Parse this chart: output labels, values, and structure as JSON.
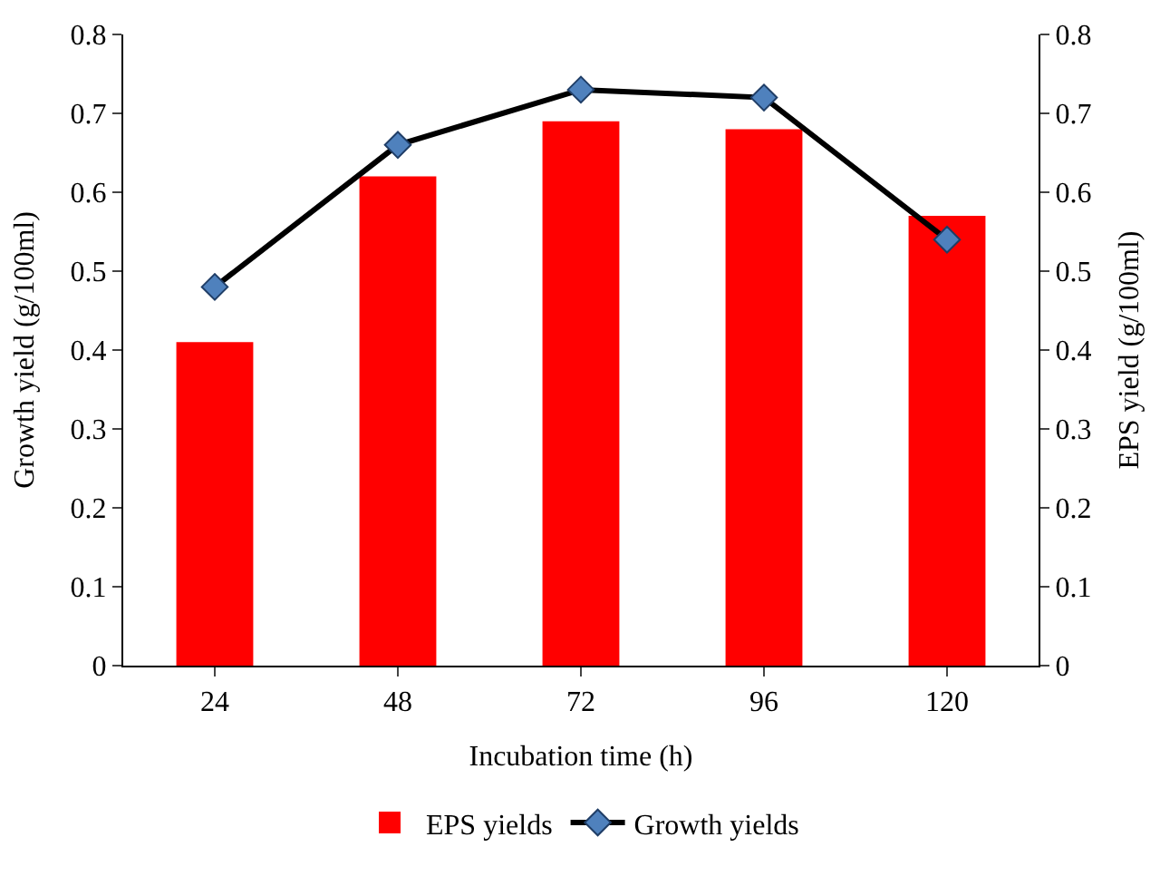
{
  "chart_data": {
    "type": "bar",
    "xlabel": "Incubation time (h)",
    "ylabel": "Growth yield (g/100ml)",
    "y2label": "EPS yield (g/100ml)",
    "categories": [
      "24",
      "48",
      "72",
      "96",
      "120"
    ],
    "series": [
      {
        "name": "EPS yields",
        "axis": "y2",
        "color": "#ff0000",
        "values": [
          0.41,
          0.62,
          0.69,
          0.68,
          0.57
        ]
      },
      {
        "name": "Growth yields",
        "type": "line",
        "color": "#000000",
        "values": [
          0.48,
          0.66,
          0.73,
          0.72,
          0.54
        ]
      }
    ],
    "ylim": [
      0,
      0.8
    ],
    "yticks": [
      0,
      0.1,
      0.2,
      0.3,
      0.4,
      0.5,
      0.6,
      0.7,
      0.8
    ],
    "y2lim": [
      0,
      0.8
    ],
    "y2ticks": [
      0,
      0.1,
      0.2,
      0.3,
      0.4,
      0.5,
      0.6,
      0.7,
      0.8
    ],
    "legend": "bottom",
    "marker": "diamond",
    "line_style": "solid"
  }
}
